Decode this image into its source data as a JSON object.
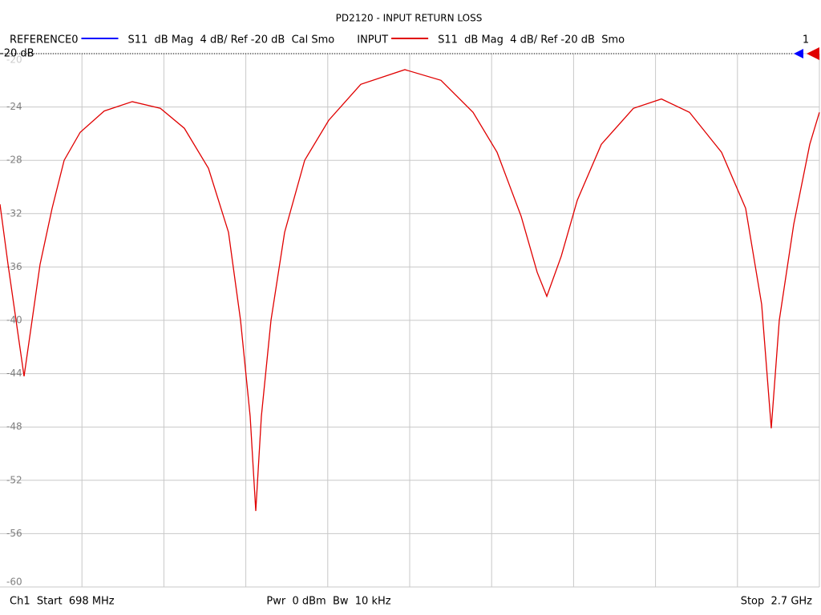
{
  "chart_data": {
    "type": "line",
    "title": "PD2120 - INPUT RETURN LOSS",
    "series": [
      {
        "name": "REFERENCE0",
        "color": "#0000ff",
        "description": "S11  dB Mag  4 dB/ Ref -20 dB  Cal Smo"
      },
      {
        "name": "INPUT",
        "color": "#e00000",
        "description": "S11  dB Mag  4 dB/ Ref -20 dB  Smo",
        "values": [
          -31.3,
          -35.8,
          -40,
          -44.2,
          -40,
          -35.8,
          -31.6,
          -28,
          -25.9,
          -24.3,
          -23.6,
          -24.1,
          -25.6,
          -28.6,
          -33.4,
          -40,
          -47.2,
          -54.3,
          -47.2,
          -40,
          -33.4,
          -28,
          -25,
          -22.3,
          -21.2,
          -22,
          -24.4,
          -27.4,
          -32.2,
          -36.4,
          -38.2,
          -35.2,
          -31,
          -26.8,
          -24.1,
          -23.4,
          -24.4,
          -27.4,
          -31.6,
          -38.8,
          -48.1,
          -40,
          -32.8,
          -26.8,
          -24.4
        ]
      }
    ],
    "x": [
      698,
      717.6,
      737.2,
      756.8,
      776.4,
      795.9,
      825.3,
      854.7,
      893.9,
      952.7,
      1021.2,
      1089.8,
      1148.5,
      1207.3,
      1256.3,
      1285.7,
      1309.2,
      1322.9,
      1336.6,
      1360.1,
      1393.4,
      1442.4,
      1501.1,
      1579.5,
      1687.2,
      1775.4,
      1853.8,
      1912.5,
      1971.3,
      2010.5,
      2034,
      2069.2,
      2108.4,
      2167.2,
      2245.5,
      2314.1,
      2382.6,
      2461,
      2519.8,
      2558.9,
      2582.4,
      2602,
      2637.3,
      2676.5,
      2700
    ],
    "xlim": [
      698,
      2700
    ],
    "ylim": [
      -60,
      -20
    ],
    "yticks": [
      -20,
      -24,
      -28,
      -32,
      -36,
      -40,
      -44,
      -48,
      -52,
      -56,
      -60
    ],
    "grid": true,
    "reference_label": "-20 dB",
    "marker_label": "1",
    "footer": {
      "start": "Ch1  Start  698 MHz",
      "power": "Pwr  0 dBm  Bw  10 kHz",
      "stop": "Stop  2.7 GHz"
    }
  }
}
